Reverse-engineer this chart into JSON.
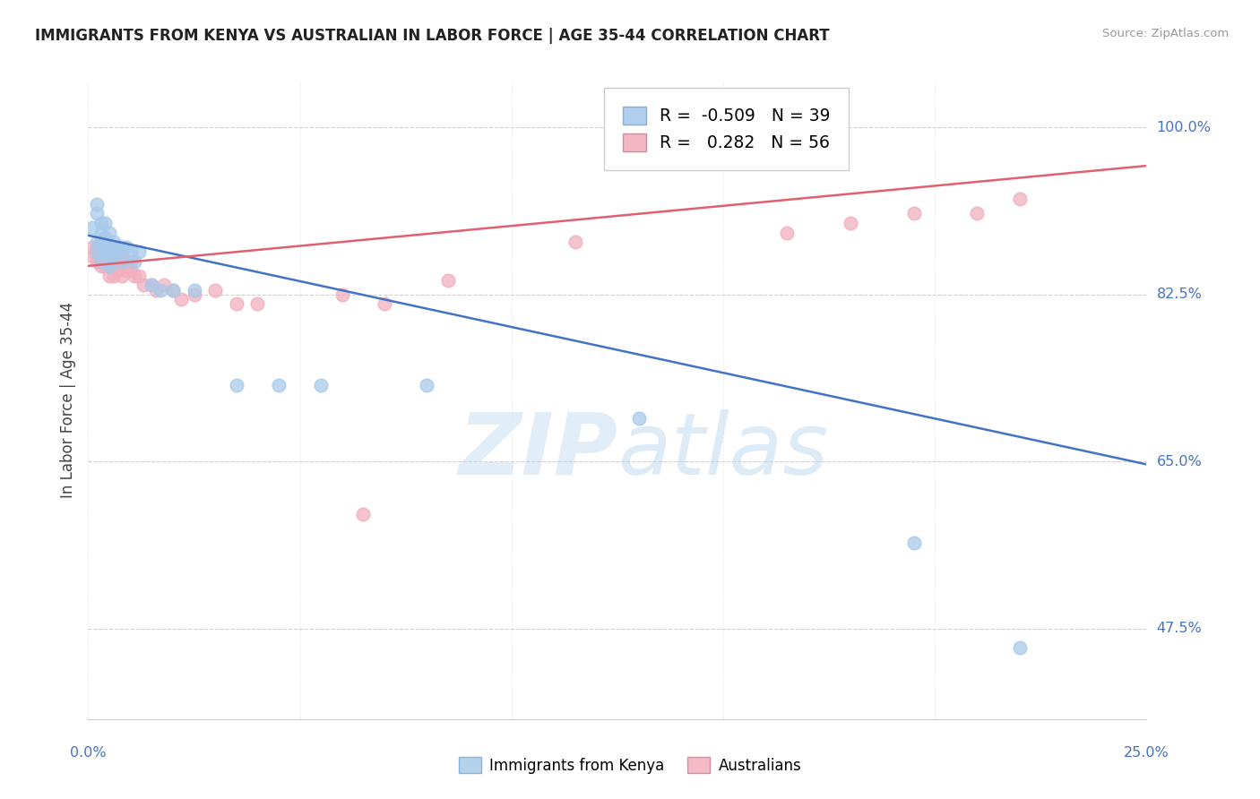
{
  "title": "IMMIGRANTS FROM KENYA VS AUSTRALIAN IN LABOR FORCE | AGE 35-44 CORRELATION CHART",
  "source": "Source: ZipAtlas.com",
  "ylabel": "In Labor Force | Age 35-44",
  "xlim": [
    0.0,
    0.25
  ],
  "ylim": [
    0.38,
    1.05
  ],
  "ytick_positions": [
    0.475,
    0.65,
    0.825,
    1.0
  ],
  "ytick_labels": [
    "47.5%",
    "65.0%",
    "82.5%",
    "100.0%"
  ],
  "legend_r_blue": "-0.509",
  "legend_n_blue": "39",
  "legend_r_pink": "0.282",
  "legend_n_pink": "56",
  "blue_color": "#A8CAEA",
  "pink_color": "#F2AFBE",
  "blue_line_color": "#4472C4",
  "pink_line_color": "#E06070",
  "axis_color": "#4472C4",
  "background_color": "#FFFFFF",
  "watermark_zip": "ZIP",
  "watermark_atlas": "atlas",
  "blue_scatter_x": [
    0.001,
    0.002,
    0.002,
    0.002,
    0.002,
    0.003,
    0.003,
    0.003,
    0.003,
    0.003,
    0.004,
    0.004,
    0.004,
    0.004,
    0.005,
    0.005,
    0.005,
    0.005,
    0.006,
    0.006,
    0.007,
    0.007,
    0.008,
    0.008,
    0.009,
    0.01,
    0.011,
    0.012,
    0.015,
    0.017,
    0.02,
    0.025,
    0.035,
    0.045,
    0.055,
    0.08,
    0.13,
    0.195,
    0.22
  ],
  "blue_scatter_y": [
    0.895,
    0.91,
    0.92,
    0.88,
    0.87,
    0.9,
    0.89,
    0.88,
    0.875,
    0.86,
    0.9,
    0.885,
    0.875,
    0.87,
    0.89,
    0.875,
    0.86,
    0.855,
    0.88,
    0.87,
    0.875,
    0.87,
    0.875,
    0.86,
    0.875,
    0.87,
    0.86,
    0.87,
    0.835,
    0.83,
    0.83,
    0.83,
    0.73,
    0.73,
    0.73,
    0.73,
    0.695,
    0.565,
    0.455
  ],
  "pink_scatter_x": [
    0.001,
    0.001,
    0.002,
    0.002,
    0.002,
    0.002,
    0.003,
    0.003,
    0.003,
    0.003,
    0.003,
    0.004,
    0.004,
    0.004,
    0.004,
    0.005,
    0.005,
    0.005,
    0.005,
    0.005,
    0.006,
    0.006,
    0.006,
    0.006,
    0.007,
    0.007,
    0.007,
    0.008,
    0.008,
    0.008,
    0.009,
    0.009,
    0.01,
    0.01,
    0.011,
    0.012,
    0.013,
    0.015,
    0.016,
    0.018,
    0.02,
    0.022,
    0.025,
    0.03,
    0.035,
    0.04,
    0.06,
    0.065,
    0.07,
    0.085,
    0.115,
    0.165,
    0.18,
    0.195,
    0.21,
    0.22
  ],
  "pink_scatter_y": [
    0.875,
    0.865,
    0.875,
    0.87,
    0.865,
    0.86,
    0.875,
    0.87,
    0.865,
    0.86,
    0.855,
    0.875,
    0.87,
    0.86,
    0.855,
    0.875,
    0.87,
    0.865,
    0.855,
    0.845,
    0.875,
    0.865,
    0.855,
    0.845,
    0.87,
    0.86,
    0.85,
    0.865,
    0.855,
    0.845,
    0.86,
    0.85,
    0.86,
    0.85,
    0.845,
    0.845,
    0.835,
    0.835,
    0.83,
    0.835,
    0.83,
    0.82,
    0.825,
    0.83,
    0.815,
    0.815,
    0.825,
    0.595,
    0.815,
    0.84,
    0.88,
    0.89,
    0.9,
    0.91,
    0.91,
    0.925
  ],
  "blue_trend_x": [
    0.0,
    0.25
  ],
  "blue_trend_y": [
    0.887,
    0.647
  ],
  "pink_trend_x": [
    0.0,
    0.25
  ],
  "pink_trend_y": [
    0.855,
    0.96
  ]
}
